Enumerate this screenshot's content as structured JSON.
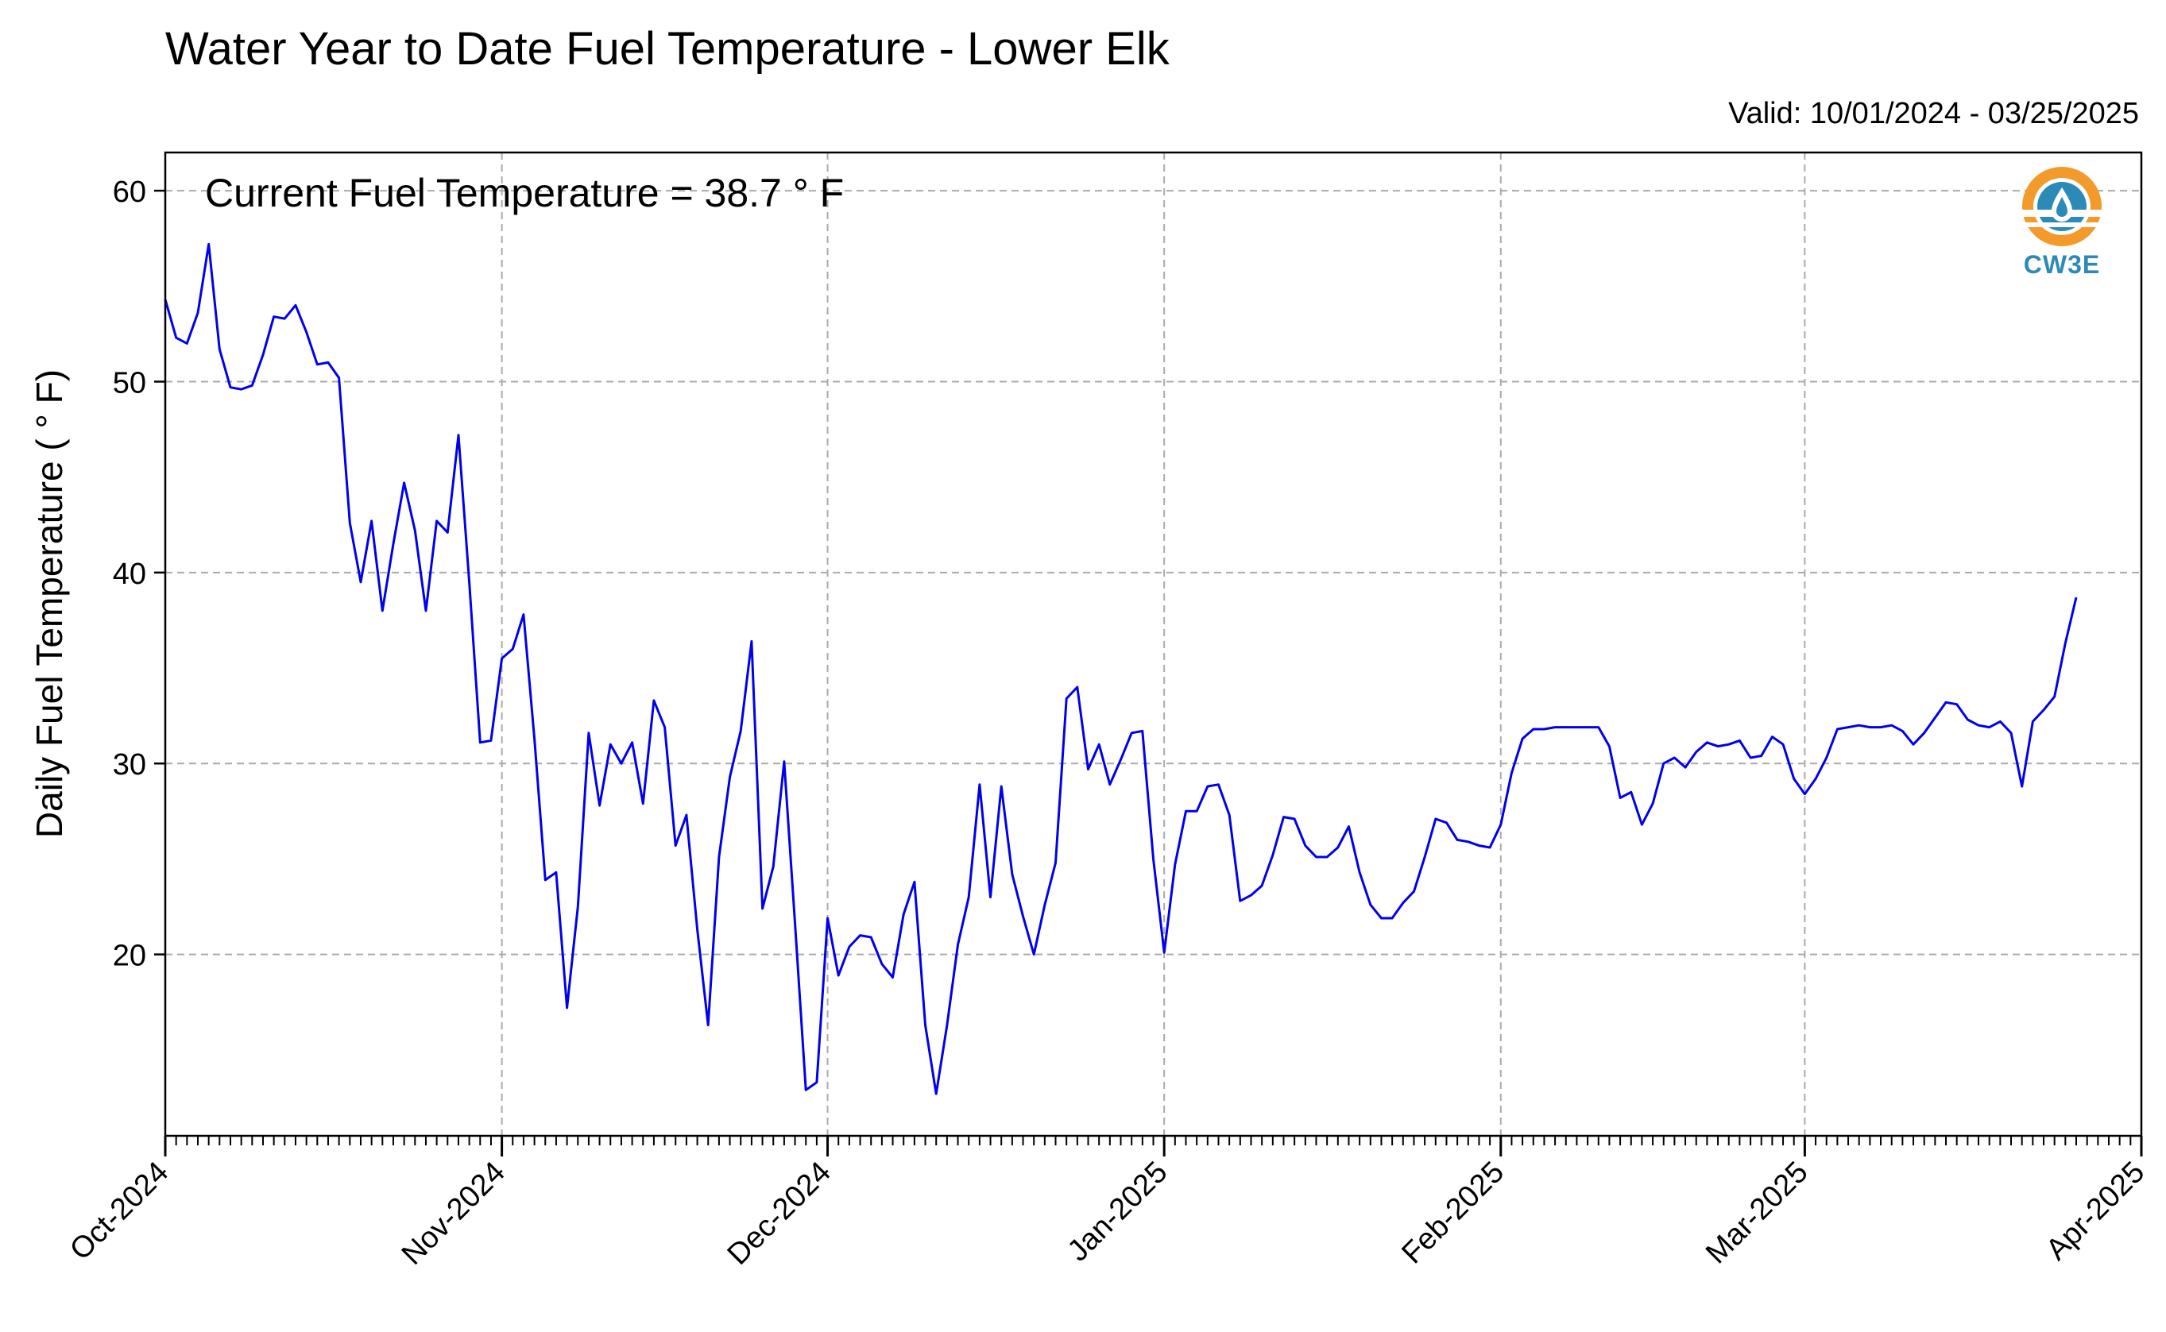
{
  "title": "Water Year to Date Fuel Temperature - Lower Elk",
  "valid": "Valid: 10/01/2024 - 03/25/2025",
  "logo_text": "CW3E",
  "chart_data": {
    "type": "line",
    "title": "Water Year to Date Fuel Temperature - Lower Elk",
    "ylabel": "Daily Fuel Temperature ( ° F)",
    "xlabel": "",
    "ylim": [
      10.5,
      62
    ],
    "xlim": [
      "2024-10-01",
      "2025-04-01"
    ],
    "yticks": [
      20,
      30,
      40,
      50,
      60
    ],
    "xticks": [
      {
        "date": "2024-10-01",
        "label": "Oct-2024"
      },
      {
        "date": "2024-11-01",
        "label": "Nov-2024"
      },
      {
        "date": "2024-12-01",
        "label": "Dec-2024"
      },
      {
        "date": "2025-01-01",
        "label": "Jan-2025"
      },
      {
        "date": "2025-02-01",
        "label": "Feb-2025"
      },
      {
        "date": "2025-03-01",
        "label": "Mar-2025"
      },
      {
        "date": "2025-04-01",
        "label": "Apr-2025"
      }
    ],
    "grid": true,
    "annotation": "Current Fuel Temperature = 38.7 ° F",
    "line_color": "#0000ee",
    "series": [
      {
        "start_date": "2024-10-01",
        "values": [
          54.3,
          52.3,
          52.0,
          53.6,
          57.2,
          51.7,
          49.7,
          49.6,
          49.8,
          51.4,
          53.4,
          53.3,
          54.0,
          52.6,
          50.9,
          51.0,
          50.2,
          42.6,
          39.5,
          42.7,
          38.0,
          41.5,
          44.7,
          42.2,
          38.0,
          42.7,
          42.1,
          47.2,
          39.5,
          31.1,
          31.2,
          35.5,
          36.0,
          37.8,
          31.3,
          23.9,
          24.3,
          17.2,
          22.5,
          31.6,
          27.8,
          31.0,
          30.0,
          31.1,
          27.9,
          33.3,
          31.9,
          25.7,
          27.3,
          21.3,
          16.3,
          25.1,
          29.3,
          31.7,
          36.4,
          22.4,
          24.6,
          30.1,
          21.6,
          12.9,
          13.3,
          21.9,
          18.9,
          20.4,
          21.0,
          20.9,
          19.5,
          18.8,
          22.1,
          23.8,
          16.3,
          12.7,
          16.3,
          20.5,
          23.0,
          28.9,
          23.0,
          28.8,
          24.2,
          22.0,
          20.0,
          22.6,
          24.8,
          33.4,
          34.0,
          29.7,
          31.0,
          28.9,
          30.2,
          31.6,
          31.7,
          25.0,
          20.1,
          24.7,
          27.5,
          27.5,
          28.8,
          28.9,
          27.3,
          22.8,
          23.1,
          23.6,
          25.2,
          27.2,
          27.1,
          25.7,
          25.1,
          25.1,
          25.6,
          26.7,
          24.3,
          22.6,
          21.9,
          21.9,
          22.7,
          23.3,
          25.1,
          27.1,
          26.9,
          26.0,
          25.9,
          25.7,
          25.6,
          26.8,
          29.5,
          31.3,
          31.8,
          31.8,
          31.9,
          31.9,
          31.9,
          31.9,
          31.9,
          30.9,
          28.2,
          28.5,
          26.8,
          27.9,
          30.0,
          30.3,
          29.8,
          30.6,
          31.1,
          30.9,
          31.0,
          31.2,
          30.3,
          30.4,
          31.4,
          31.0,
          29.2,
          28.4,
          29.2,
          30.3,
          31.8,
          31.9,
          32.0,
          31.9,
          31.9,
          32.0,
          31.7,
          31.0,
          31.6,
          32.4,
          33.2,
          33.1,
          32.3,
          32.0,
          31.9,
          32.2,
          31.6,
          28.8,
          32.2,
          32.8,
          33.5,
          36.3,
          38.7
        ]
      }
    ]
  }
}
